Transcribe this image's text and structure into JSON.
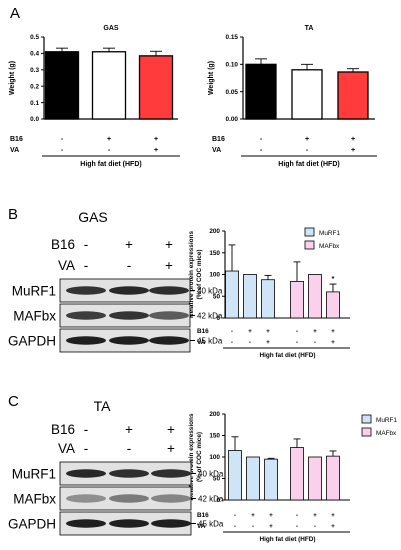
{
  "panels": [
    "A",
    "B",
    "C"
  ],
  "colors": {
    "black_bar": "#000000",
    "white_bar": "#ffffff",
    "red_bar": "#ff3b3b",
    "murf1": "#cfe5f7",
    "mafbx": "#fbd0ec"
  },
  "treatment_rows": {
    "b16": "B16",
    "va": "VA",
    "b16_signs": [
      "-",
      "+",
      "+"
    ],
    "va_signs": [
      "-",
      "-",
      "+"
    ],
    "group_label": "High fat diet (HFD)"
  },
  "blots": [
    {
      "tissue": "GAS",
      "b16_signs": [
        "-",
        "+",
        "+"
      ],
      "va_signs": [
        "-",
        "-",
        "+"
      ],
      "bands": [
        {
          "label": "MuRF1",
          "kda": "40 kDa"
        },
        {
          "label": "MAFbx",
          "kda": "42 kDa"
        },
        {
          "label": "GAPDH",
          "kda": "45 kDa"
        }
      ]
    },
    {
      "tissue": "TA",
      "b16_signs": [
        "-",
        "+",
        "+"
      ],
      "va_signs": [
        "-",
        "-",
        "+"
      ],
      "bands": [
        {
          "label": "MuRF1",
          "kda": "40 kDa"
        },
        {
          "label": "MAFbx",
          "kda": "42 kDa"
        },
        {
          "label": "GAPDH",
          "kda": "45 kDa"
        }
      ]
    }
  ],
  "chart_data": [
    {
      "type": "bar",
      "title": "GAS",
      "ylabel": "Weight (g)",
      "ylim": [
        0,
        0.5
      ],
      "yticks": [
        "0.0",
        "0.1",
        "0.2",
        "0.3",
        "0.4",
        "0.5"
      ],
      "values": [
        0.41,
        0.41,
        0.385
      ],
      "errors": [
        0.022,
        0.022,
        0.028
      ],
      "bar_fills": [
        "#000000",
        "#ffffff",
        "#ff3b3b"
      ]
    },
    {
      "type": "bar",
      "title": "TA",
      "ylabel": "Weight (g)",
      "ylim": [
        0,
        0.15
      ],
      "yticks": [
        "0.00",
        "0.05",
        "0.10",
        "0.15"
      ],
      "values": [
        0.1,
        0.09,
        0.086
      ],
      "errors": [
        0.01,
        0.01,
        0.006
      ],
      "bar_fills": [
        "#000000",
        "#ffffff",
        "#ff3b3b"
      ]
    },
    {
      "type": "bar",
      "ylabel": "Relative protein expressions\n(% of COC mice)",
      "ylim": [
        0,
        200
      ],
      "yticks": [
        "0",
        "50",
        "100",
        "150",
        "200"
      ],
      "legend": [
        "MuRF1",
        "MAFbx"
      ],
      "legend_position": "top-right",
      "series": [
        {
          "name": "MuRF1",
          "values": [
            108,
            100,
            88
          ],
          "errors": [
            60,
            0,
            10
          ]
        },
        {
          "name": "MAFbx",
          "values": [
            84,
            100,
            60
          ],
          "errors": [
            45,
            0,
            18
          ]
        }
      ],
      "annotations": [
        {
          "series": 1,
          "index": 2,
          "text": "*"
        }
      ]
    },
    {
      "type": "bar",
      "ylabel": "Relative protein expressions\n(% of COC mice)",
      "ylim": [
        0,
        200
      ],
      "yticks": [
        "0",
        "50",
        "100",
        "150",
        "200"
      ],
      "legend": [
        "MuRF1",
        "MAFbx"
      ],
      "legend_position": "top-right",
      "series": [
        {
          "name": "MuRF1",
          "values": [
            115,
            100,
            95
          ],
          "errors": [
            32,
            0,
            2
          ]
        },
        {
          "name": "MAFbx",
          "values": [
            122,
            100,
            102
          ],
          "errors": [
            20,
            0,
            12
          ]
        }
      ],
      "annotations": []
    }
  ]
}
